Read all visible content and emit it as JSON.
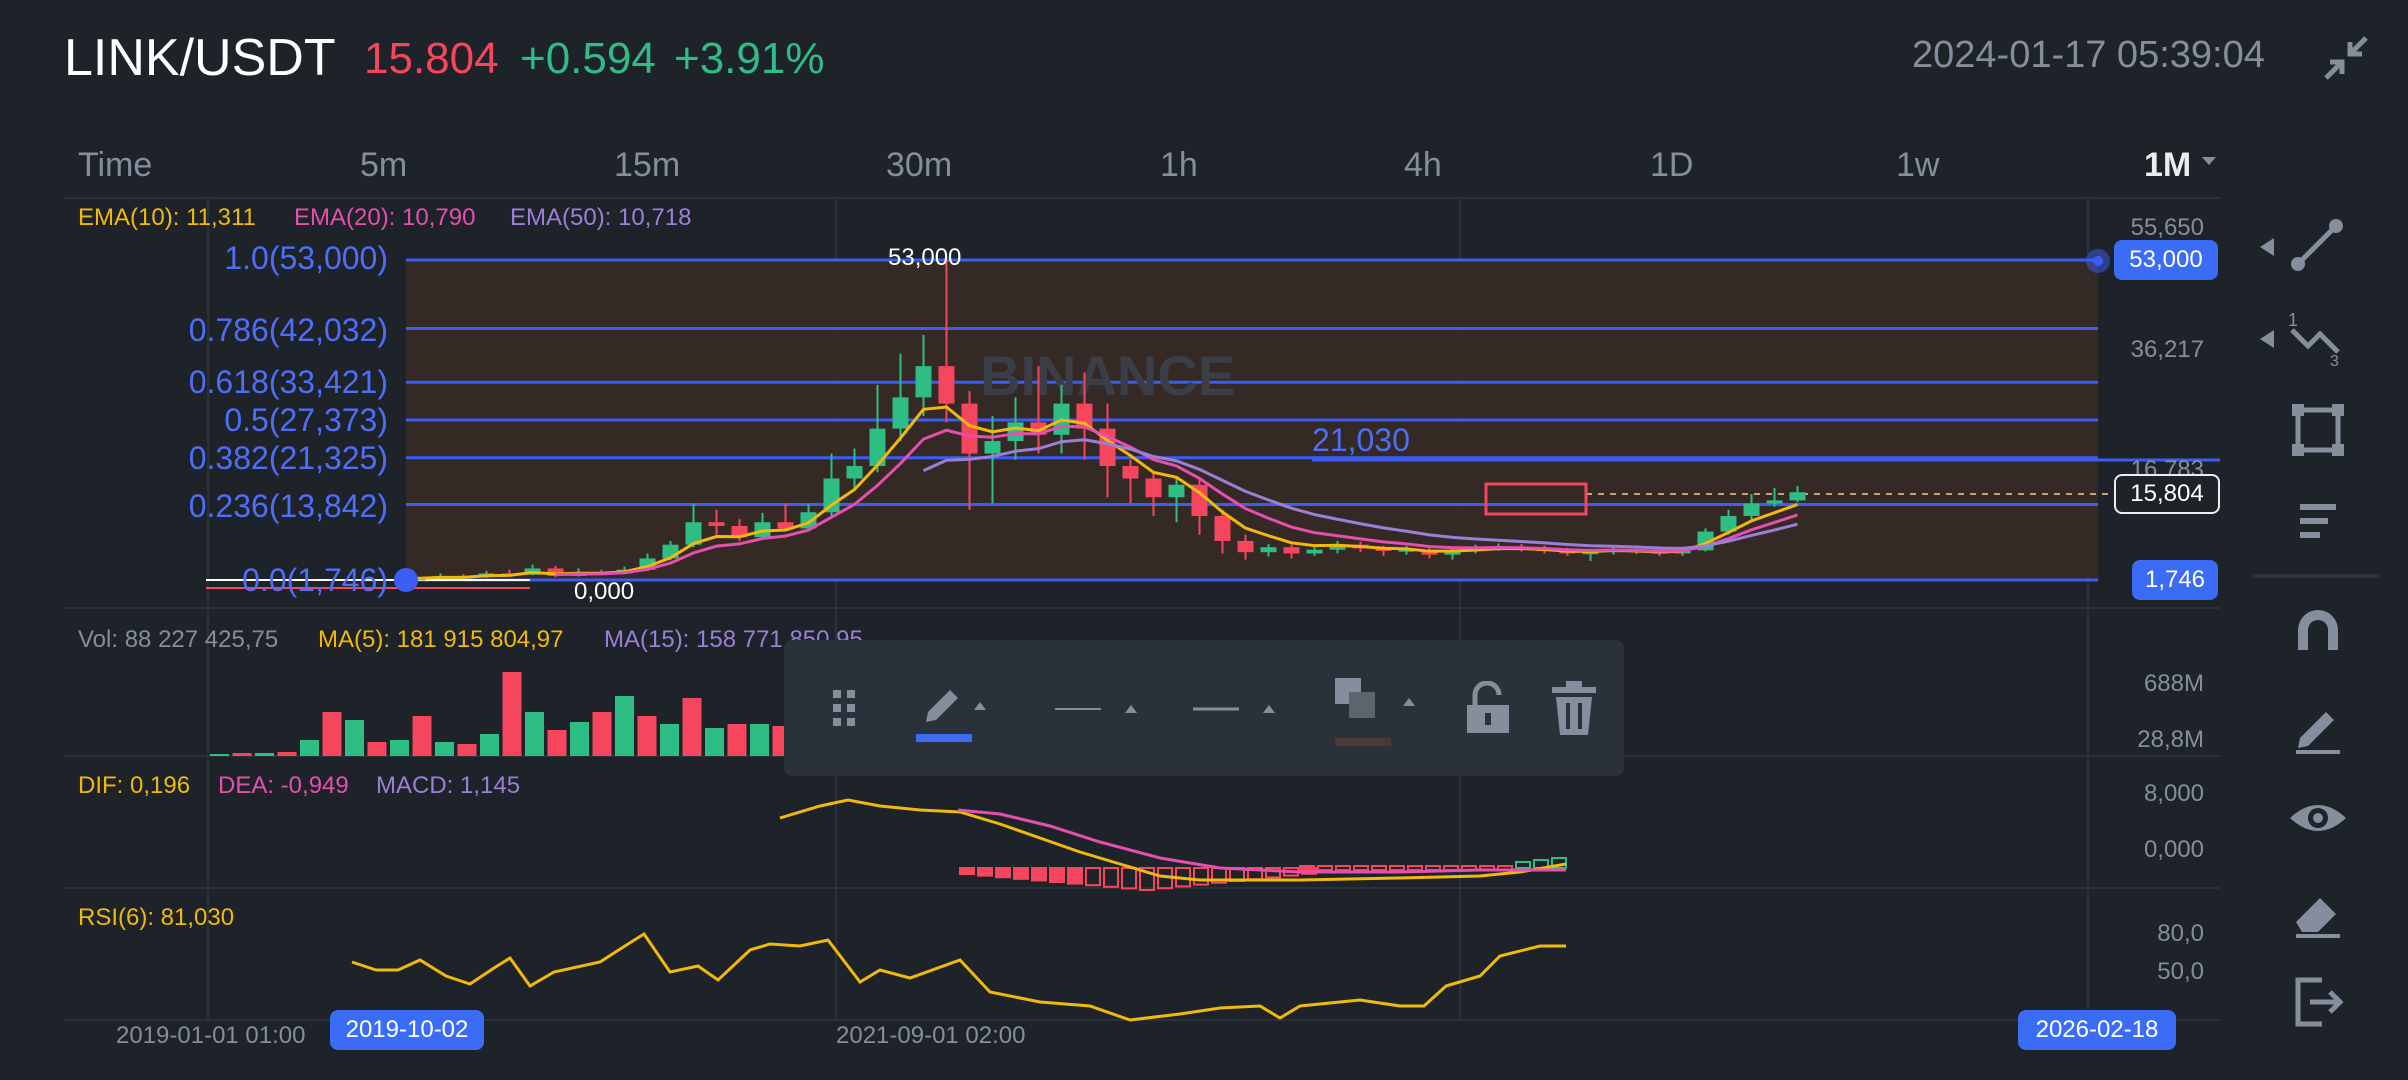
{
  "header": {
    "pair": "LINK/USDT",
    "price": "15.804",
    "change": "+0.594",
    "change_pct": "+3.91%",
    "datetime": "2024-01-17 05:39:04"
  },
  "intervals": [
    {
      "label": "Time",
      "active": false
    },
    {
      "label": "5m",
      "active": false
    },
    {
      "label": "15m",
      "active": false
    },
    {
      "label": "30m",
      "active": false
    },
    {
      "label": "1h",
      "active": false
    },
    {
      "label": "4h",
      "active": false
    },
    {
      "label": "1D",
      "active": false
    },
    {
      "label": "1w",
      "active": false
    },
    {
      "label": "1M",
      "active": true
    }
  ],
  "main_chart": {
    "ema10": "EMA(10): 11,311",
    "ema20": "EMA(20): 10,790",
    "ema50": "EMA(50): 10,718",
    "watermark": "BINANCE",
    "high_label": "53,000",
    "low_label": "0,000",
    "line_label": "21,030",
    "y_axis": [
      "55,650",
      "36,217",
      "16,783"
    ],
    "price_tag_top": "53,000",
    "price_tag_current": "15,804",
    "price_tag_bottom": "1,746",
    "fib_levels": [
      {
        "label": "1.0(53,000)",
        "value": 53000
      },
      {
        "label": "0.786(42,032)",
        "value": 42032
      },
      {
        "label": "0.618(33,421)",
        "value": 33421
      },
      {
        "label": "0.5(27,373)",
        "value": 27373
      },
      {
        "label": "0.382(21,325)",
        "value": 21325
      },
      {
        "label": "0.236(13,842)",
        "value": 13842
      },
      {
        "label": "0.0(1,746)",
        "value": 1746
      }
    ]
  },
  "volume": {
    "vol": "Vol: 88 227 425,75",
    "ma5": "MA(5): 181 915 804,97",
    "ma15": "MA(15): 158 771 850,95",
    "y_axis": [
      "688M",
      "28,8M"
    ]
  },
  "macd": {
    "dif": "DIF: 0,196",
    "dea": "DEA: -0,949",
    "macd": "MACD: 1,145",
    "y_axis": [
      "8,000",
      "0,000"
    ]
  },
  "rsi": {
    "rsi6": "RSI(6): 81,030",
    "y_axis": [
      "80,0",
      "50,0"
    ]
  },
  "time_axis": {
    "start": "2019-01-01 01:00",
    "range_start": "2019-10-02",
    "mid": "2021-09-01 02:00",
    "range_end": "2026-02-18"
  },
  "drawing_toolbar": [
    "drag-handle-icon",
    "pencil-icon",
    "line-style-icon",
    "line-width-icon",
    "fill-color-icon",
    "unlock-icon",
    "trash-icon"
  ],
  "sidebar_tools": [
    "trend-line-icon",
    "fib-tool-icon",
    "rectangle-icon",
    "text-lines-icon",
    "magnet-icon",
    "brush-icon",
    "eye-icon",
    "eraser-icon",
    "exit-icon"
  ],
  "colors": {
    "background": "#1e2329",
    "up": "#2ebd85",
    "down": "#f6465d",
    "accent": "#3b6cf6",
    "ema10": "#f0b90b",
    "ema20": "#e44fb0",
    "ema50": "#9b7fd6"
  }
}
